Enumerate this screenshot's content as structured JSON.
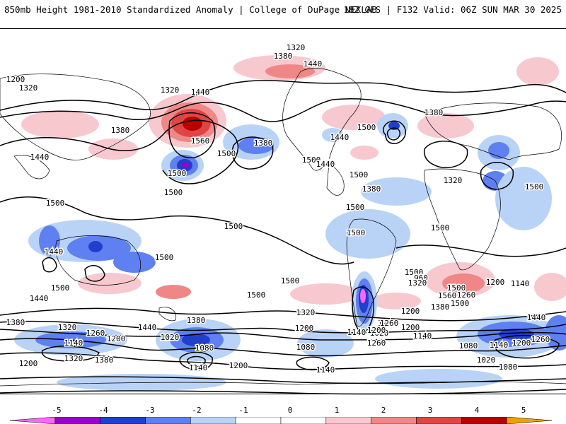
{
  "header": {
    "title": "850mb Height 1981-2010 Standardized Anomaly | College of DuPage NEXLAB",
    "run_info": "18Z GFS | F132 Valid: 06Z SUN MAR 30 2025"
  },
  "colors": {
    "neg5": "#ff66ff",
    "neg4": "#9a00cc",
    "neg3": "#1f3fcc",
    "neg2": "#5f80f0",
    "neg1": "#b9d3f7",
    "zero": "#ffffff",
    "pos1": "#f7c9cf",
    "pos2": "#f08787",
    "pos3": "#e04545",
    "pos4": "#b80000",
    "pos5": "#f2a000",
    "contour": "#000000",
    "land_outline": "#000000"
  },
  "colorbar": {
    "ticks": [
      "-5",
      "-4",
      "-3",
      "-2",
      "-1",
      "0",
      "1",
      "2",
      "3",
      "4",
      "5"
    ]
  },
  "contour_labels": [
    "1320",
    "1380",
    "1440",
    "1200",
    "1320",
    "1320",
    "1440",
    "1380",
    "1560",
    "1380",
    "1500",
    "1500",
    "1380",
    "1440",
    "1500",
    "1380",
    "1320",
    "1440",
    "1500",
    "1440",
    "1500",
    "1500",
    "1500",
    "1500",
    "1500",
    "1500",
    "1500",
    "1500",
    "1500",
    "1500",
    "1500",
    "1500",
    "1500",
    "1560",
    "1500",
    "1380",
    "1440",
    "1320",
    "1200",
    "1380",
    "1440",
    "1320",
    "1260",
    "1200",
    "1140",
    "1020",
    "1080",
    "1140",
    "1200",
    "1080",
    "1020",
    "1140",
    "1080",
    "1140",
    "1200",
    "1260",
    "1440",
    "1380",
    "1320",
    "1200",
    "1140",
    "1200",
    "1140",
    "1080",
    "1020",
    "960",
    "1140",
    "1200",
    "1260",
    "1380",
    "1320",
    "1260",
    "1200",
    "1140",
    "1200",
    "1260",
    "1500",
    "1440"
  ]
}
